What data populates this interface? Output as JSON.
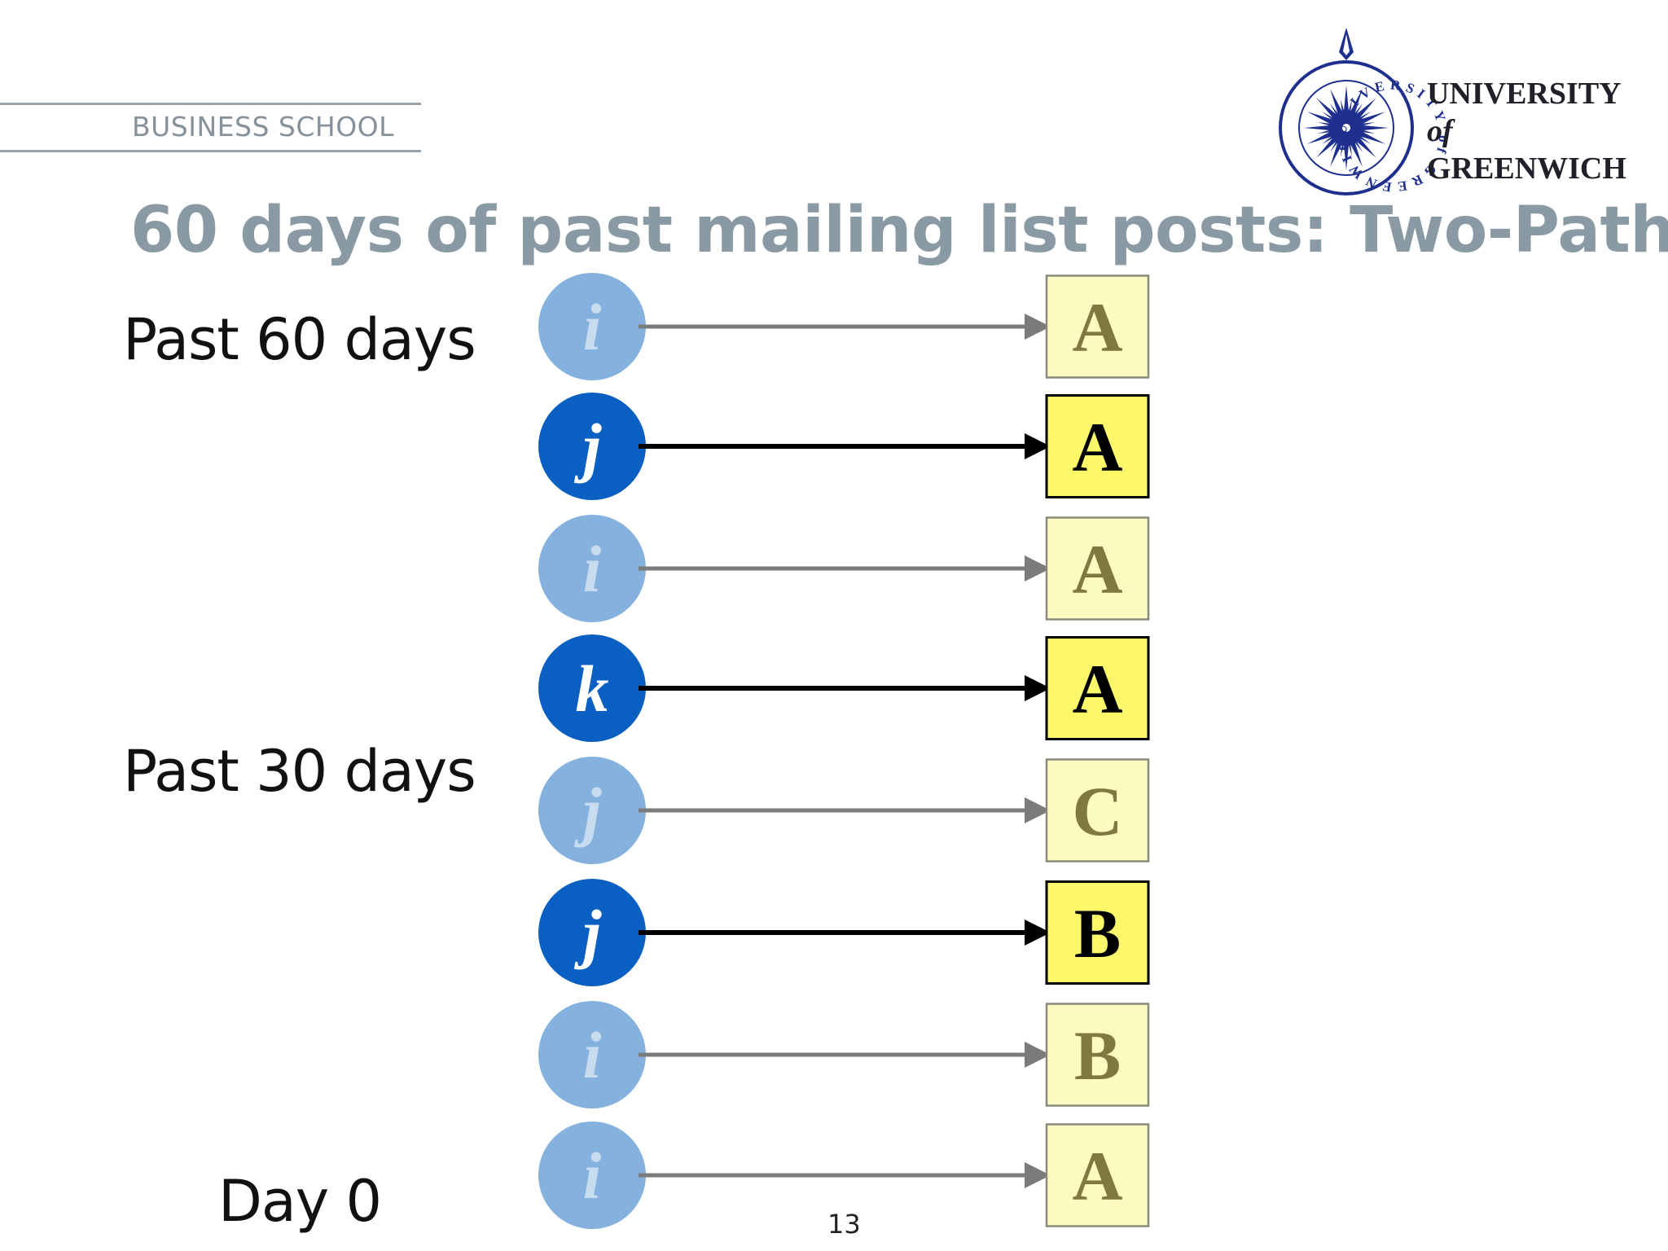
{
  "header": {
    "school": "BUSINESS SCHOOL",
    "university": {
      "line1": "UNIVERSITY",
      "line2": "of",
      "line3": "GREENWICH",
      "seal_text": "UNIVERSITY of GREENWICH"
    }
  },
  "title": "60 days of past mailing list posts: Two-Path",
  "timeline": [
    {
      "label": "Past 60 days",
      "row": 0
    },
    {
      "label": "Past 30 days",
      "row": 4
    },
    {
      "label": "Day 0",
      "row": 7
    }
  ],
  "rows": [
    {
      "node": "i",
      "target": "A",
      "highlighted": false
    },
    {
      "node": "j",
      "target": "A",
      "highlighted": true
    },
    {
      "node": "i",
      "target": "A",
      "highlighted": false
    },
    {
      "node": "k",
      "target": "A",
      "highlighted": true
    },
    {
      "node": "j",
      "target": "C",
      "highlighted": false
    },
    {
      "node": "j",
      "target": "B",
      "highlighted": true
    },
    {
      "node": "i",
      "target": "B",
      "highlighted": false
    },
    {
      "node": "i",
      "target": "A",
      "highlighted": false
    }
  ],
  "page_number": "13",
  "colors": {
    "node_highlight": "#0a5fc2",
    "node_faded": "#85b1de",
    "box_highlight": "#fcf86a",
    "box_faded": "#fdfbc1",
    "arrow_highlight": "#000000",
    "arrow_faded": "#7b7b7b",
    "box_text_highlight": "#000000",
    "box_text_faded": "#80793d",
    "title": "#8a9aa4",
    "seal": "#1f2f8f"
  }
}
